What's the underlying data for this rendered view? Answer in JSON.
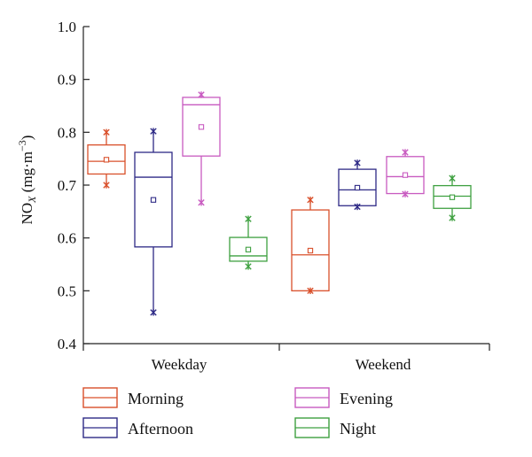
{
  "chart_data": {
    "type": "box",
    "ylabel": "NO",
    "ylabel_sub": "X",
    "ylabel_unit": " (mg·m",
    "ylabel_sup": "−3",
    "ylabel_close": ")",
    "ylim": [
      0.4,
      1.0
    ],
    "yticks": [
      0.4,
      0.5,
      0.6,
      0.7,
      0.8,
      0.9,
      1.0
    ],
    "ytick_labels": [
      "0.4",
      "0.5",
      "0.6",
      "0.7",
      "0.8",
      "0.9",
      "1.0"
    ],
    "categories": [
      "Weekday",
      "Weekend"
    ],
    "series": [
      {
        "name": "Morning",
        "color": "#d9502b",
        "boxes": [
          {
            "min": 0.7,
            "q1": 0.721,
            "median": 0.745,
            "q3": 0.776,
            "max": 0.8,
            "mean": 0.748
          },
          {
            "min": 0.5,
            "q1": 0.5,
            "median": 0.568,
            "q3": 0.653,
            "max": 0.672,
            "mean": 0.576
          }
        ]
      },
      {
        "name": "Afternoon",
        "color": "#2e2a86",
        "boxes": [
          {
            "min": 0.459,
            "q1": 0.583,
            "median": 0.715,
            "q3": 0.762,
            "max": 0.802,
            "mean": 0.672
          },
          {
            "min": 0.659,
            "q1": 0.661,
            "median": 0.691,
            "q3": 0.73,
            "max": 0.742,
            "mean": 0.695
          }
        ]
      },
      {
        "name": "Evening",
        "color": "#c85ac0",
        "boxes": [
          {
            "min": 0.667,
            "q1": 0.755,
            "median": 0.852,
            "q3": 0.866,
            "max": 0.871,
            "mean": 0.81
          },
          {
            "min": 0.683,
            "q1": 0.684,
            "median": 0.716,
            "q3": 0.754,
            "max": 0.762,
            "mean": 0.719
          }
        ]
      },
      {
        "name": "Night",
        "color": "#3ea040",
        "boxes": [
          {
            "min": 0.546,
            "q1": 0.556,
            "median": 0.566,
            "q3": 0.601,
            "max": 0.636,
            "mean": 0.578
          },
          {
            "min": 0.638,
            "q1": 0.656,
            "median": 0.679,
            "q3": 0.699,
            "max": 0.713,
            "mean": 0.677
          }
        ]
      }
    ],
    "legend": [
      "Morning",
      "Afternoon",
      "Evening",
      "Night"
    ],
    "legend_position": "bottom"
  }
}
